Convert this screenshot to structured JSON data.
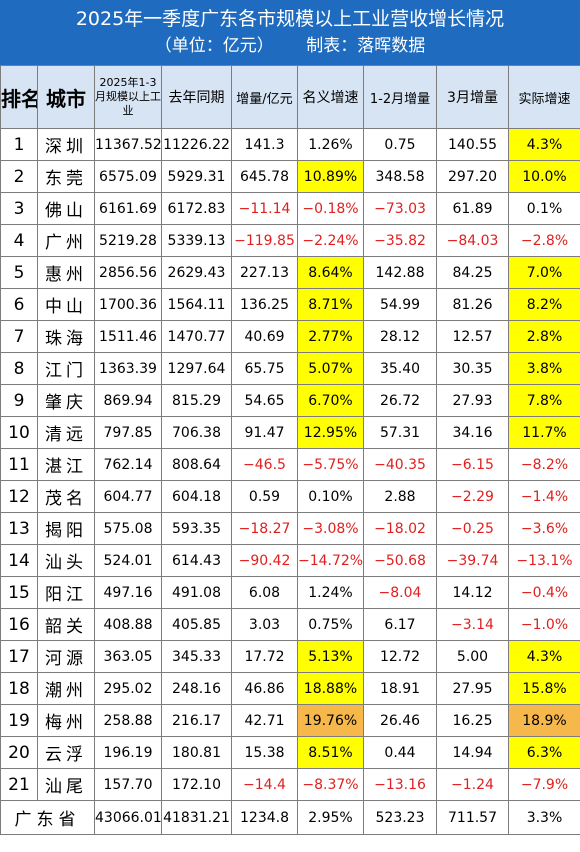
{
  "header": {
    "title": "2025年一季度广东各市规模以上工业营收增长情况",
    "subtitle": "（单位：亿元）      制表：落晖数据"
  },
  "columns": {
    "rank": "排名",
    "city": "城市",
    "revenue": "2025年1-3月规模以上工业",
    "last_year": "去年同期",
    "increase": "增量/亿元",
    "nominal_growth": "名义增速",
    "jan_feb_increase": "1-2月增量",
    "march_increase": "3月增量",
    "real_growth": "实际增速"
  },
  "rows": [
    {
      "rank": "1",
      "city": "深圳",
      "revenue": "11367.52",
      "last_year": "11226.22",
      "increase": "141.3",
      "nominal_growth": "1.26%",
      "jan_feb_increase": "0.75",
      "march_increase": "140.55",
      "real_growth": "4.3%"
    },
    {
      "rank": "2",
      "city": "东莞",
      "revenue": "6575.09",
      "last_year": "5929.31",
      "increase": "645.78",
      "nominal_growth": "10.89%",
      "jan_feb_increase": "348.58",
      "march_increase": "297.20",
      "real_growth": "10.0%"
    },
    {
      "rank": "3",
      "city": "佛山",
      "revenue": "6161.69",
      "last_year": "6172.83",
      "increase": "−11.14",
      "nominal_growth": "−0.18%",
      "jan_feb_increase": "−73.03",
      "march_increase": "61.89",
      "real_growth": "0.1%"
    },
    {
      "rank": "4",
      "city": "广州",
      "revenue": "5219.28",
      "last_year": "5339.13",
      "increase": "−119.85",
      "nominal_growth": "−2.24%",
      "jan_feb_increase": "−35.82",
      "march_increase": "−84.03",
      "real_growth": "−2.8%"
    },
    {
      "rank": "5",
      "city": "惠州",
      "revenue": "2856.56",
      "last_year": "2629.43",
      "increase": "227.13",
      "nominal_growth": "8.64%",
      "jan_feb_increase": "142.88",
      "march_increase": "84.25",
      "real_growth": "7.0%"
    },
    {
      "rank": "6",
      "city": "中山",
      "revenue": "1700.36",
      "last_year": "1564.11",
      "increase": "136.25",
      "nominal_growth": "8.71%",
      "jan_feb_increase": "54.99",
      "march_increase": "81.26",
      "real_growth": "8.2%"
    },
    {
      "rank": "7",
      "city": "珠海",
      "revenue": "1511.46",
      "last_year": "1470.77",
      "increase": "40.69",
      "nominal_growth": "2.77%",
      "jan_feb_increase": "28.12",
      "march_increase": "12.57",
      "real_growth": "2.8%"
    },
    {
      "rank": "8",
      "city": "江门",
      "revenue": "1363.39",
      "last_year": "1297.64",
      "increase": "65.75",
      "nominal_growth": "5.07%",
      "jan_feb_increase": "35.40",
      "march_increase": "30.35",
      "real_growth": "3.8%"
    },
    {
      "rank": "9",
      "city": "肇庆",
      "revenue": "869.94",
      "last_year": "815.29",
      "increase": "54.65",
      "nominal_growth": "6.70%",
      "jan_feb_increase": "26.72",
      "march_increase": "27.93",
      "real_growth": "7.8%"
    },
    {
      "rank": "10",
      "city": "清远",
      "revenue": "797.85",
      "last_year": "706.38",
      "increase": "91.47",
      "nominal_growth": "12.95%",
      "jan_feb_increase": "57.31",
      "march_increase": "34.16",
      "real_growth": "11.7%"
    },
    {
      "rank": "11",
      "city": "湛江",
      "revenue": "762.14",
      "last_year": "808.64",
      "increase": "−46.5",
      "nominal_growth": "−5.75%",
      "jan_feb_increase": "−40.35",
      "march_increase": "−6.15",
      "real_growth": "−8.2%"
    },
    {
      "rank": "12",
      "city": "茂名",
      "revenue": "604.77",
      "last_year": "604.18",
      "increase": "0.59",
      "nominal_growth": "0.10%",
      "jan_feb_increase": "2.88",
      "march_increase": "−2.29",
      "real_growth": "−1.4%"
    },
    {
      "rank": "13",
      "city": "揭阳",
      "revenue": "575.08",
      "last_year": "593.35",
      "increase": "−18.27",
      "nominal_growth": "−3.08%",
      "jan_feb_increase": "−18.02",
      "march_increase": "−0.25",
      "real_growth": "−3.6%"
    },
    {
      "rank": "14",
      "city": "汕头",
      "revenue": "524.01",
      "last_year": "614.43",
      "increase": "−90.42",
      "nominal_growth": "−14.72%",
      "jan_feb_increase": "−50.68",
      "march_increase": "−39.74",
      "real_growth": "−13.1%"
    },
    {
      "rank": "15",
      "city": "阳江",
      "revenue": "497.16",
      "last_year": "491.08",
      "increase": "6.08",
      "nominal_growth": "1.24%",
      "jan_feb_increase": "−8.04",
      "march_increase": "14.12",
      "real_growth": "−0.4%"
    },
    {
      "rank": "16",
      "city": "韶关",
      "revenue": "408.88",
      "last_year": "405.85",
      "increase": "3.03",
      "nominal_growth": "0.75%",
      "jan_feb_increase": "6.17",
      "march_increase": "−3.14",
      "real_growth": "−1.0%"
    },
    {
      "rank": "17",
      "city": "河源",
      "revenue": "363.05",
      "last_year": "345.33",
      "increase": "17.72",
      "nominal_growth": "5.13%",
      "jan_feb_increase": "12.72",
      "march_increase": "5.00",
      "real_growth": "4.3%"
    },
    {
      "rank": "18",
      "city": "潮州",
      "revenue": "295.02",
      "last_year": "248.16",
      "increase": "46.86",
      "nominal_growth": "18.88%",
      "jan_feb_increase": "18.91",
      "march_increase": "27.95",
      "real_growth": "15.8%"
    },
    {
      "rank": "19",
      "city": "梅州",
      "revenue": "258.88",
      "last_year": "216.17",
      "increase": "42.71",
      "nominal_growth": "19.76%",
      "jan_feb_increase": "26.46",
      "march_increase": "16.25",
      "real_growth": "18.9%"
    },
    {
      "rank": "20",
      "city": "云浮",
      "revenue": "196.19",
      "last_year": "180.81",
      "increase": "15.38",
      "nominal_growth": "8.51%",
      "jan_feb_increase": "0.44",
      "march_increase": "14.94",
      "real_growth": "6.3%"
    },
    {
      "rank": "21",
      "city": "汕尾",
      "revenue": "157.70",
      "last_year": "172.10",
      "increase": "−14.4",
      "nominal_growth": "−8.37%",
      "jan_feb_increase": "−13.16",
      "march_increase": "−1.24",
      "real_growth": "−7.9%"
    }
  ],
  "total": {
    "label": "广东省",
    "revenue": "43066.01",
    "last_year": "41831.21",
    "increase": "1234.8",
    "nominal_growth": "2.95%",
    "jan_feb_increase": "523.23",
    "march_increase": "711.57",
    "real_growth": "3.3%"
  },
  "colors": {
    "header_bg": "#1f6bbf",
    "column_header_bg": "#d6e4f3",
    "highlight": "#ffff00",
    "highlight_top": "#f7b84b",
    "negative": "#e02020"
  }
}
